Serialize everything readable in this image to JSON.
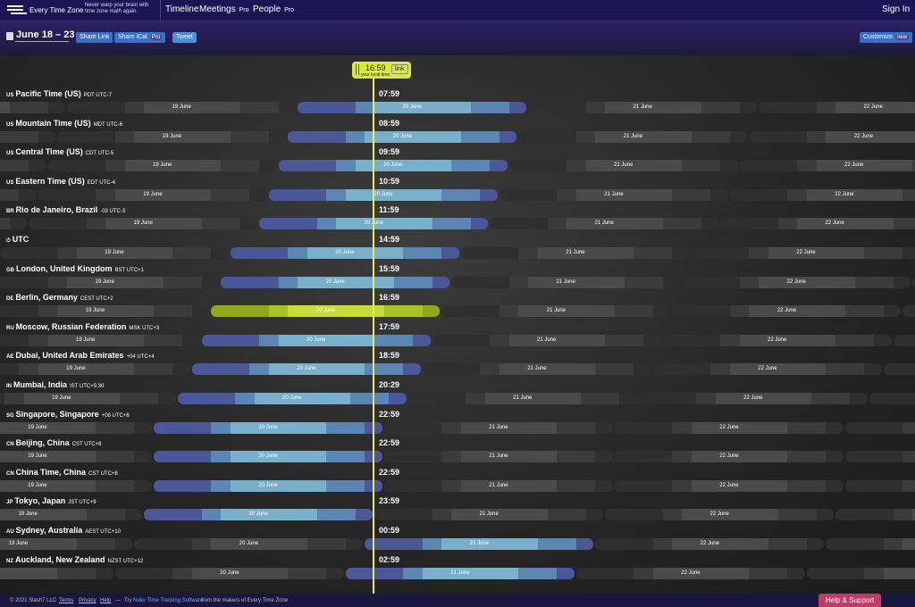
{
  "header": {
    "logo": "Every Time Zone",
    "tagline": "Never warp your brain with time zone math again.",
    "nav": [
      {
        "label": "Timeline"
      },
      {
        "label": "Meetings",
        "badge": "Pro"
      },
      {
        "label": "People",
        "badge": "Pro"
      }
    ],
    "sign_in": "Sign In"
  },
  "toolbar": {
    "date_range": "June 18 – 23",
    "share_link": "Share Link",
    "share_ical": "Share iCal",
    "ical_badge": "Pro",
    "tweet": "Tweet",
    "customize": "Customize",
    "customize_badge": "new"
  },
  "now": {
    "time": "16:59",
    "label": "your local time",
    "link": "link"
  },
  "zones": [
    {
      "flag": "US",
      "name": "Pacific Time (US)",
      "abbr": "PDT UTC-7",
      "time": "07:59",
      "before": [
        "19 June"
      ],
      "today": "20 June",
      "after": [
        "21 June",
        "22 June"
      ]
    },
    {
      "flag": "US",
      "name": "Mountain Time (US)",
      "abbr": "MDT UTC-6",
      "time": "08:59",
      "before": [
        "19 June"
      ],
      "today": "20 June",
      "after": [
        "21 June",
        "22 June"
      ]
    },
    {
      "flag": "US",
      "name": "Central Time (US)",
      "abbr": "CDT UTC-5",
      "time": "09:59",
      "before": [
        "19 June"
      ],
      "today": "20 June",
      "after": [
        "21 June",
        "22 June"
      ]
    },
    {
      "flag": "US",
      "name": "Eastern Time (US)",
      "abbr": "EDT UTC-4",
      "time": "10:59",
      "before": [
        "19 June"
      ],
      "today": "20 June",
      "after": [
        "21 June",
        "22 June"
      ]
    },
    {
      "flag": "BR",
      "name": "Rio de Janeiro, Brazil",
      "abbr": "-03 UTC-3",
      "time": "11:59",
      "before": [
        "19 June"
      ],
      "today": "20 June",
      "after": [
        "21 June",
        "22 June"
      ]
    },
    {
      "flag": "⏻",
      "name": "UTC",
      "abbr": "",
      "time": "14:59",
      "before": [
        "19 June"
      ],
      "today": "20 June",
      "after": [
        "21 June",
        "22 June"
      ]
    },
    {
      "flag": "GB",
      "name": "London, United Kingdom",
      "abbr": "BST UTC+1",
      "time": "15:59",
      "before": [
        "19 June"
      ],
      "today": "20 June",
      "after": [
        "21 June",
        "22 June"
      ]
    },
    {
      "flag": "DE",
      "name": "Berlin, Germany",
      "abbr": "CEST UTC+2",
      "time": "16:59",
      "local": true,
      "before": [
        "19 June"
      ],
      "today": "20 June",
      "after": [
        "21 June",
        "22 June"
      ]
    },
    {
      "flag": "RU",
      "name": "Moscow, Russian Federation",
      "abbr": "MSK UTC+3",
      "time": "17:59",
      "before": [
        "19 June"
      ],
      "today": "20 June",
      "after": [
        "21 June",
        "22 June"
      ]
    },
    {
      "flag": "AE",
      "name": "Dubai, United Arab Emirates",
      "abbr": "+04 UTC+4",
      "time": "18:59",
      "before": [
        "19 June"
      ],
      "today": "20 June",
      "after": [
        "21 June",
        "22 June"
      ]
    },
    {
      "flag": "IN",
      "name": "Mumbai, India",
      "abbr": "IST UTC+5:30",
      "time": "20:29",
      "before": [
        "19 June"
      ],
      "today": "20 June",
      "after": [
        "21 June",
        "22 June"
      ]
    },
    {
      "flag": "SG",
      "name": "Singapore, Singapore",
      "abbr": "+08 UTC+8",
      "time": "22:59",
      "before": [
        "19 June"
      ],
      "today": "20 June",
      "after": [
        "21 June",
        "22 June"
      ]
    },
    {
      "flag": "CN",
      "name": "Beijing, China",
      "abbr": "CST UTC+8",
      "time": "22:59",
      "before": [
        "19 June"
      ],
      "today": "20 June",
      "after": [
        "21 June",
        "22 June"
      ]
    },
    {
      "flag": "CN",
      "name": "China Time, China",
      "abbr": "CST UTC+8",
      "time": "22:59",
      "before": [
        "19 June"
      ],
      "today": "20 June",
      "after": [
        "21 June",
        "22 June"
      ]
    },
    {
      "flag": "JP",
      "name": "Tokyo, Japan",
      "abbr": "JST UTC+9",
      "time": "23:59",
      "before": [
        "19 June"
      ],
      "today": "20 June",
      "after": [
        "21 June",
        "22 June"
      ]
    },
    {
      "flag": "AU",
      "name": "Sydney, Australia",
      "abbr": "AEST UTC+10",
      "time": "00:59",
      "before": [
        "19 June",
        "20 June"
      ],
      "today": "21 June",
      "after": [
        "22 June"
      ]
    },
    {
      "flag": "NZ",
      "name": "Auckland, New Zealand",
      "abbr": "NZST UTC+12",
      "time": "02:59",
      "before": [
        "20 June"
      ],
      "today": "21 June",
      "after": [
        "22 June"
      ]
    }
  ],
  "footer": {
    "copyright": "© 2021 Slash7 LLC",
    "links": [
      "Terms",
      "Privacy",
      "Help"
    ],
    "dash": "—",
    "try": "Try",
    "noko": "Noko Time Tracking Software",
    "makers": "from the makers of Every Time Zone",
    "help_support": "Help & Support"
  }
}
